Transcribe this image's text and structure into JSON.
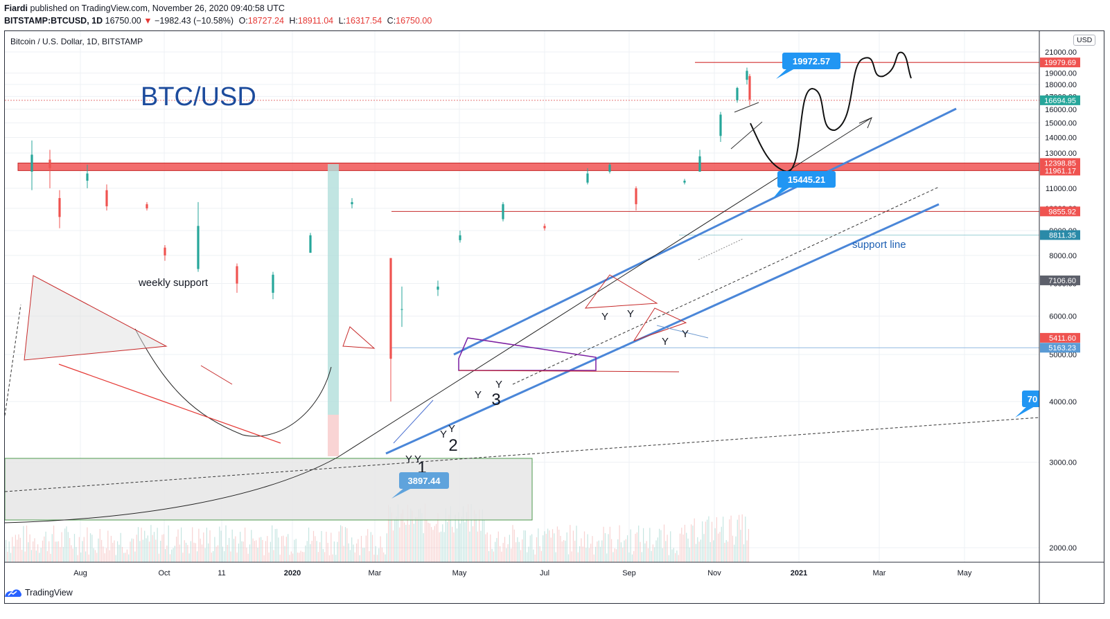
{
  "header": {
    "author": "Fiardi",
    "published_text": "published on TradingView.com, November 26, 2020 09:40:58 UTC",
    "symbol": "BITSTAMP:BTCUSD, 1D",
    "last": "16750.00",
    "arrow": "▼",
    "change": "−1982.43 (−10.58%)",
    "ohlc": [
      {
        "k": "O:",
        "v": "18727.24"
      },
      {
        "k": "H:",
        "v": "18911.04"
      },
      {
        "k": "L:",
        "v": "16317.54"
      },
      {
        "k": "C:",
        "v": "16750.00"
      }
    ]
  },
  "pane_title": "Bitcoin / U.S. Dollar, 1D, BITSTAMP",
  "currency": "USD",
  "footer_brand": "TradingView",
  "colors": {
    "up": "#26a69a",
    "down": "#ef5350",
    "channel": "#4a86d8",
    "callout": "#2196f3",
    "support_band": "#f05454",
    "title_blue": "#1c4b9c"
  },
  "chart_data": {
    "type": "candlestick",
    "title": "BTC/USD",
    "y_scale": "log",
    "ylim": [
      1800,
      23000
    ],
    "y_ticks": [
      "21000.00",
      "19000.00",
      "18000.00",
      "17000.00",
      "16000.00",
      "15000.00",
      "14000.00",
      "13000.00",
      "11000.00",
      "10000.00",
      "9000.00",
      "8000.00",
      "7000.00",
      "6000.00",
      "5000.00",
      "4000.00",
      "3000.00",
      "2000.00"
    ],
    "x_ticks": [
      "Aug",
      "Oct",
      "11",
      "2020",
      "Mar",
      "May",
      "Jul",
      "Sep",
      "Nov",
      "2021",
      "Mar",
      "May"
    ],
    "price_labels": [
      {
        "text": "19979.69",
        "value": 19979.69,
        "bg": "#ef5350"
      },
      {
        "text": "16694.95",
        "value": 16694.95,
        "bg": "#26a69a"
      },
      {
        "text": "12398.85",
        "value": 12398.85,
        "bg": "#ef5350"
      },
      {
        "text": "11961.17",
        "value": 11961.17,
        "bg": "#ef5350"
      },
      {
        "text": "9855.92",
        "value": 9855.92,
        "bg": "#ef5350"
      },
      {
        "text": "8811.35",
        "value": 8811.35,
        "bg": "#2a8aa8"
      },
      {
        "text": "7106.60",
        "value": 7106.6,
        "bg": "#5d606b"
      },
      {
        "text": "5411.60",
        "value": 5411.6,
        "bg": "#ef5350"
      },
      {
        "text": "5163.23",
        "value": 5163.23,
        "bg": "#5b9bd5"
      }
    ],
    "annotations": {
      "weekly_support": "weekly support",
      "support_line": "support line",
      "callouts": [
        "19972.57",
        "15445.21",
        "3897.44",
        "70"
      ],
      "wave_numbers": [
        "1",
        "2",
        "3"
      ],
      "wave_letter": "Y"
    },
    "series": [
      {
        "values": [
          {
            "date": "2019-06-27",
            "o": 11900,
            "h": 13800,
            "l": 10900,
            "c": 12900
          },
          {
            "date": "2019-07-10",
            "o": 12600,
            "h": 13200,
            "l": 11000,
            "c": 12100
          },
          {
            "date": "2019-07-17",
            "o": 10500,
            "h": 10900,
            "l": 9100,
            "c": 9600
          },
          {
            "date": "2019-08-06",
            "o": 11400,
            "h": 12300,
            "l": 11000,
            "c": 11800
          },
          {
            "date": "2019-08-20",
            "o": 10900,
            "h": 11200,
            "l": 9900,
            "c": 10100
          },
          {
            "date": "2019-09-18",
            "o": 10200,
            "h": 10300,
            "l": 9900,
            "c": 10000
          },
          {
            "date": "2019-10-01",
            "o": 8300,
            "h": 8400,
            "l": 7800,
            "c": 8000
          },
          {
            "date": "2019-10-25",
            "o": 7500,
            "h": 10300,
            "l": 7400,
            "c": 9200
          },
          {
            "date": "2019-11-22",
            "o": 7600,
            "h": 7700,
            "l": 6700,
            "c": 7000
          },
          {
            "date": "2019-12-18",
            "o": 6700,
            "h": 7400,
            "l": 6500,
            "c": 7300
          },
          {
            "date": "2020-01-14",
            "o": 8100,
            "h": 8900,
            "l": 8100,
            "c": 8800
          },
          {
            "date": "2020-02-13",
            "o": 10200,
            "h": 10500,
            "l": 10000,
            "c": 10300
          },
          {
            "date": "2020-03-12",
            "o": 7900,
            "h": 7900,
            "l": 4000,
            "c": 4900
          },
          {
            "date": "2020-03-20",
            "o": 6200,
            "h": 6900,
            "l": 5700,
            "c": 6200
          },
          {
            "date": "2020-04-15",
            "o": 6800,
            "h": 7100,
            "l": 6600,
            "c": 6900
          },
          {
            "date": "2020-05-01",
            "o": 8600,
            "h": 9000,
            "l": 8500,
            "c": 8800
          },
          {
            "date": "2020-06-01",
            "o": 9500,
            "h": 10300,
            "l": 9400,
            "c": 10200
          },
          {
            "date": "2020-07-01",
            "o": 9200,
            "h": 9300,
            "l": 9000,
            "c": 9100
          },
          {
            "date": "2020-08-01",
            "o": 11300,
            "h": 12100,
            "l": 11200,
            "c": 11800
          },
          {
            "date": "2020-08-17",
            "o": 11900,
            "h": 12400,
            "l": 11800,
            "c": 12300
          },
          {
            "date": "2020-09-05",
            "o": 11000,
            "h": 11100,
            "l": 9900,
            "c": 10200
          },
          {
            "date": "2020-10-10",
            "o": 11300,
            "h": 11500,
            "l": 11200,
            "c": 11400
          },
          {
            "date": "2020-10-21",
            "o": 11900,
            "h": 13200,
            "l": 11900,
            "c": 12800
          },
          {
            "date": "2020-11-05",
            "o": 14100,
            "h": 15800,
            "l": 13700,
            "c": 15600
          },
          {
            "date": "2020-11-17",
            "o": 16700,
            "h": 17800,
            "l": 16500,
            "c": 17700
          },
          {
            "date": "2020-11-24",
            "o": 18400,
            "h": 19500,
            "l": 18000,
            "c": 19200
          },
          {
            "date": "2020-11-26",
            "o": 18727.24,
            "h": 18911.04,
            "l": 16317.54,
            "c": 16750.0
          }
        ]
      }
    ]
  }
}
